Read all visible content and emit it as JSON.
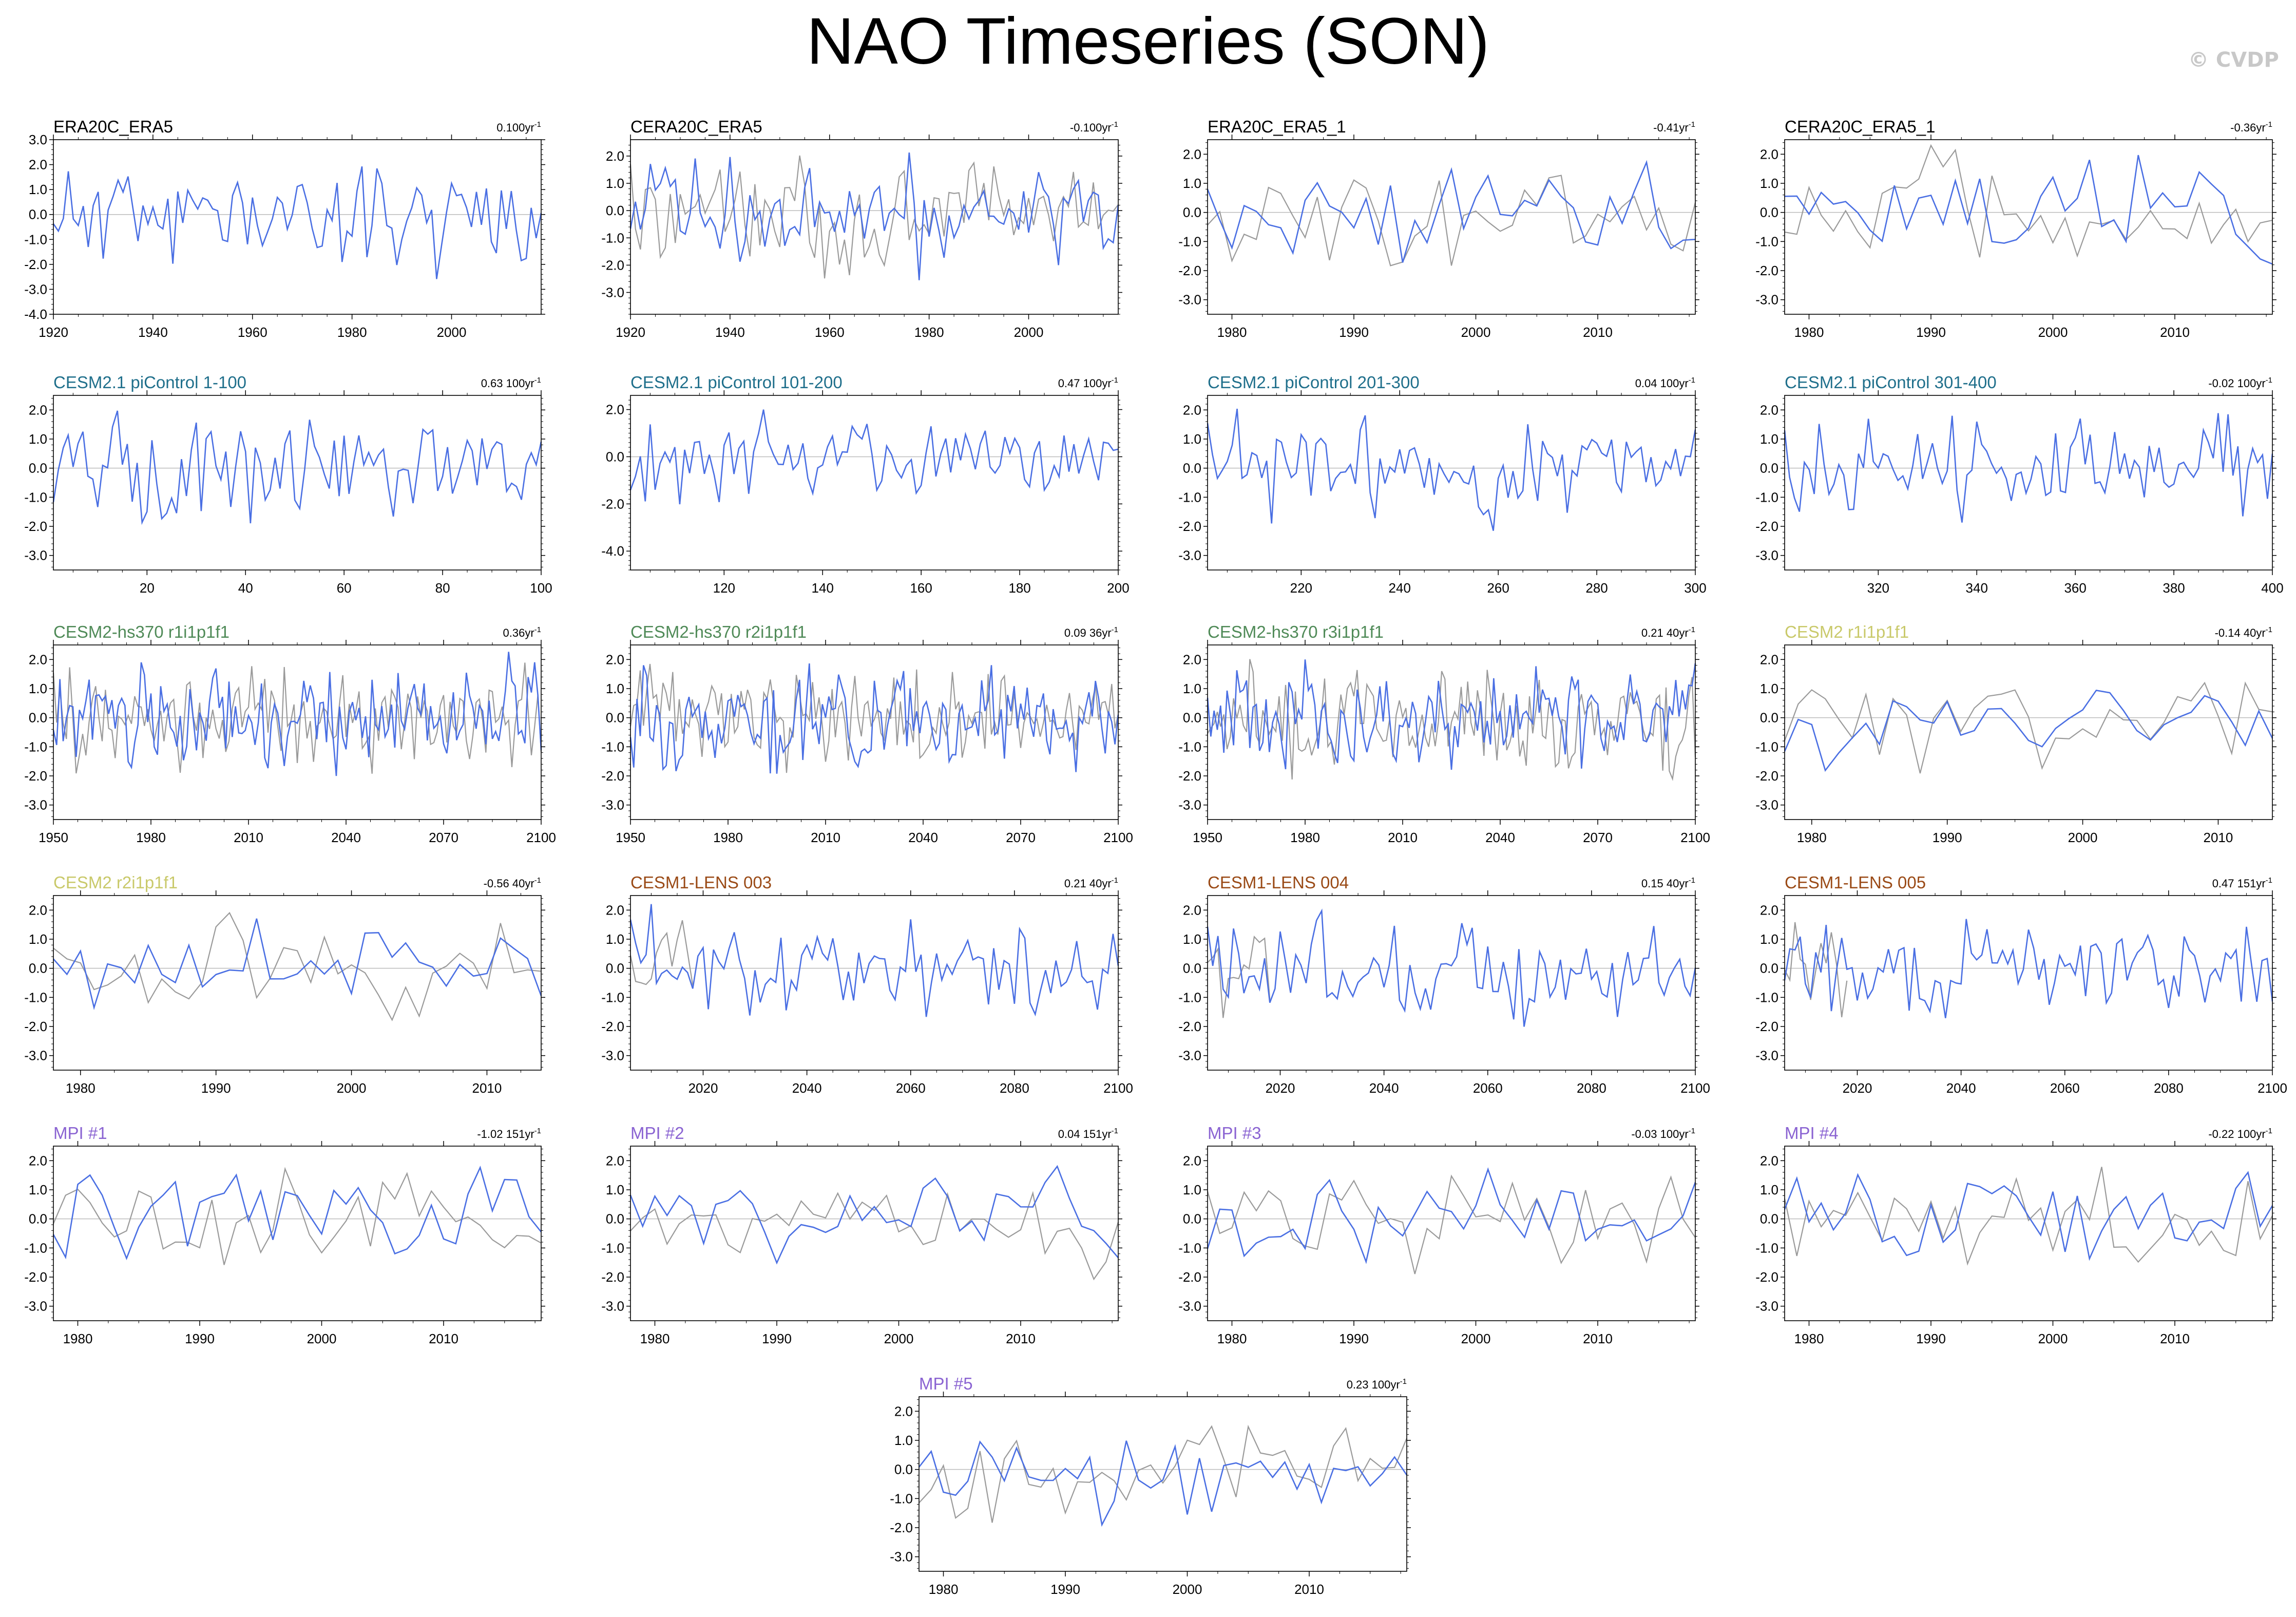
{
  "title": "NAO Timeseries (SON)",
  "credit": "© CVDP",
  "colors": {
    "model_line": "#4a6fe3",
    "obs_line": "#9a9a9a",
    "zero_line": "#bbbbbb",
    "axis": "#000000"
  },
  "chart_data": [
    {
      "id": "p1",
      "type": "line",
      "title": "ERA20C_ERA5",
      "title_color": "#000000",
      "trend": "0.100yr",
      "xlim": [
        1920,
        2018
      ],
      "ylim": [
        -4,
        3
      ],
      "yticks": [
        -4,
        -3,
        -2,
        -1,
        0,
        1,
        2,
        3
      ],
      "xticks": [
        1920,
        1940,
        1960,
        1980,
        2000
      ],
      "ytick_labels": [
        "-4.0",
        "-3.0",
        "-2.0",
        "-1.0",
        "0.0",
        "1.0",
        "2.0",
        "3.0"
      ],
      "grey": false,
      "seed": 11,
      "amp": 1.2
    },
    {
      "id": "p2",
      "type": "line",
      "title": "CERA20C_ERA5",
      "title_color": "#000000",
      "trend": "-0.100yr",
      "xlim": [
        1920,
        2018
      ],
      "ylim": [
        -3.8,
        2.6
      ],
      "yticks": [
        -3,
        -2,
        -1,
        0,
        1,
        2
      ],
      "xticks": [
        1920,
        1940,
        1960,
        1980,
        2000
      ],
      "ytick_labels": [
        "-3.0",
        "-2.0",
        "-1.0",
        "0.0",
        "1.0",
        "2.0"
      ],
      "grey": true,
      "seed": 12,
      "amp": 1.2
    },
    {
      "id": "p3",
      "type": "line",
      "title": "ERA20C_ERA5_1",
      "title_color": "#000000",
      "trend": "-0.41yr",
      "xlim": [
        1978,
        2018
      ],
      "ylim": [
        -3.5,
        2.5
      ],
      "yticks": [
        -3,
        -2,
        -1,
        0,
        1,
        2
      ],
      "xticks": [
        1980,
        1990,
        2000,
        2010
      ],
      "ytick_labels": [
        "-3.0",
        "-2.0",
        "-1.0",
        "0.0",
        "1.0",
        "2.0"
      ],
      "grey": true,
      "seed": 13,
      "amp": 1.0
    },
    {
      "id": "p4",
      "type": "line",
      "title": "CERA20C_ERA5_1",
      "title_color": "#000000",
      "trend": "-0.36yr",
      "xlim": [
        1978,
        2018
      ],
      "ylim": [
        -3.5,
        2.5
      ],
      "yticks": [
        -3,
        -2,
        -1,
        0,
        1,
        2
      ],
      "xticks": [
        1980,
        1990,
        2000,
        2010
      ],
      "ytick_labels": [
        "-3.0",
        "-2.0",
        "-1.0",
        "0.0",
        "1.0",
        "2.0"
      ],
      "grey": true,
      "seed": 14,
      "amp": 1.0
    },
    {
      "id": "p5",
      "type": "line",
      "title": "CESM2.1 piControl 1-100",
      "title_color": "#1f6f8b",
      "trend": "0.63 100yr",
      "xlim": [
        1,
        100
      ],
      "ylim": [
        -3.5,
        2.5
      ],
      "yticks": [
        -3,
        -2,
        -1,
        0,
        1,
        2
      ],
      "xticks": [
        20,
        40,
        60,
        80,
        100
      ],
      "ytick_labels": [
        "-3.0",
        "-2.0",
        "-1.0",
        "0.0",
        "1.0",
        "2.0"
      ],
      "grey": false,
      "seed": 21,
      "amp": 1.0
    },
    {
      "id": "p6",
      "type": "line",
      "title": "CESM2.1 piControl 101-200",
      "title_color": "#1f6f8b",
      "trend": "0.47 100yr",
      "xlim": [
        101,
        200
      ],
      "ylim": [
        -4.8,
        2.6
      ],
      "yticks": [
        -4,
        -2,
        0,
        2
      ],
      "xticks": [
        120,
        140,
        160,
        180,
        200
      ],
      "ytick_labels": [
        "-4.0",
        "-2.0",
        "0.0",
        "2.0"
      ],
      "grey": false,
      "seed": 22,
      "amp": 1.0
    },
    {
      "id": "p7",
      "type": "line",
      "title": "CESM2.1 piControl 201-300",
      "title_color": "#1f6f8b",
      "trend": "0.04 100yr",
      "xlim": [
        201,
        300
      ],
      "ylim": [
        -3.5,
        2.5
      ],
      "yticks": [
        -3,
        -2,
        -1,
        0,
        1,
        2
      ],
      "xticks": [
        220,
        240,
        260,
        280,
        300
      ],
      "ytick_labels": [
        "-3.0",
        "-2.0",
        "-1.0",
        "0.0",
        "1.0",
        "2.0"
      ],
      "grey": false,
      "seed": 23,
      "amp": 1.0
    },
    {
      "id": "p8",
      "type": "line",
      "title": "CESM2.1 piControl 301-400",
      "title_color": "#1f6f8b",
      "trend": "-0.02 100yr",
      "xlim": [
        301,
        400
      ],
      "ylim": [
        -3.5,
        2.5
      ],
      "yticks": [
        -3,
        -2,
        -1,
        0,
        1,
        2
      ],
      "xticks": [
        320,
        340,
        360,
        380,
        400
      ],
      "ytick_labels": [
        "-3.0",
        "-2.0",
        "-1.0",
        "0.0",
        "1.0",
        "2.0"
      ],
      "grey": false,
      "seed": 24,
      "amp": 1.0
    },
    {
      "id": "p9",
      "type": "line",
      "title": "CESM2-hs370 r1i1p1f1",
      "title_color": "#4f8a57",
      "trend": "0.36yr",
      "xlim": [
        1950,
        2100
      ],
      "ylim": [
        -3.5,
        2.5
      ],
      "yticks": [
        -3,
        -2,
        -1,
        0,
        1,
        2
      ],
      "xticks": [
        1950,
        1980,
        2010,
        2040,
        2070,
        2100
      ],
      "ytick_labels": [
        "-3.0",
        "-2.0",
        "-1.0",
        "0.0",
        "1.0",
        "2.0"
      ],
      "grey": true,
      "seed": 31,
      "amp": 1.0
    },
    {
      "id": "p10",
      "type": "line",
      "title": "CESM2-hs370 r2i1p1f1",
      "title_color": "#4f8a57",
      "trend": "0.09 36yr",
      "xlim": [
        1950,
        2100
      ],
      "ylim": [
        -3.5,
        2.5
      ],
      "yticks": [
        -3,
        -2,
        -1,
        0,
        1,
        2
      ],
      "xticks": [
        1950,
        1980,
        2010,
        2040,
        2070,
        2100
      ],
      "ytick_labels": [
        "-3.0",
        "-2.0",
        "-1.0",
        "0.0",
        "1.0",
        "2.0"
      ],
      "grey": true,
      "seed": 32,
      "amp": 1.0
    },
    {
      "id": "p11",
      "type": "line",
      "title": "CESM2-hs370 r3i1p1f1",
      "title_color": "#4f8a57",
      "trend": "0.21 40yr",
      "xlim": [
        1950,
        2100
      ],
      "ylim": [
        -3.5,
        2.5
      ],
      "yticks": [
        -3,
        -2,
        -1,
        0,
        1,
        2
      ],
      "xticks": [
        1950,
        1980,
        2010,
        2040,
        2070,
        2100
      ],
      "ytick_labels": [
        "-3.0",
        "-2.0",
        "-1.0",
        "0.0",
        "1.0",
        "2.0"
      ],
      "grey": true,
      "seed": 33,
      "amp": 1.0
    },
    {
      "id": "p12",
      "type": "line",
      "title": "CESM2 r1i1p1f1",
      "title_color": "#c9c96a",
      "trend": "-0.14 40yr",
      "xlim": [
        1978,
        2014
      ],
      "ylim": [
        -3.5,
        2.5
      ],
      "yticks": [
        -3,
        -2,
        -1,
        0,
        1,
        2
      ],
      "xticks": [
        1980,
        1990,
        2000,
        2010
      ],
      "ytick_labels": [
        "-3.0",
        "-2.0",
        "-1.0",
        "0.0",
        "1.0",
        "2.0"
      ],
      "grey": true,
      "seed": 34,
      "amp": 1.0
    },
    {
      "id": "p13",
      "type": "line",
      "title": "CESM2 r2i1p1f1",
      "title_color": "#c9c96a",
      "trend": "-0.56 40yr",
      "xlim": [
        1978,
        2014
      ],
      "ylim": [
        -3.5,
        2.5
      ],
      "yticks": [
        -3,
        -2,
        -1,
        0,
        1,
        2
      ],
      "xticks": [
        1980,
        1990,
        2000,
        2010
      ],
      "ytick_labels": [
        "-3.0",
        "-2.0",
        "-1.0",
        "0.0",
        "1.0",
        "2.0"
      ],
      "grey": true,
      "seed": 41,
      "amp": 1.0
    },
    {
      "id": "p14",
      "type": "line",
      "title": "CESM1-LENS 003",
      "title_color": "#9a4a16",
      "trend": "0.21 40yr",
      "xlim": [
        2006,
        2100
      ],
      "ylim": [
        -3.5,
        2.5
      ],
      "yticks": [
        -3,
        -2,
        -1,
        0,
        1,
        2
      ],
      "xticks": [
        2020,
        2040,
        2060,
        2080,
        2100
      ],
      "ytick_labels": [
        "-3.0",
        "-2.0",
        "-1.0",
        "0.0",
        "1.0",
        "2.0"
      ],
      "grey": true,
      "greyEnd": 2018,
      "seed": 42,
      "amp": 1.0
    },
    {
      "id": "p15",
      "type": "line",
      "title": "CESM1-LENS 004",
      "title_color": "#9a4a16",
      "trend": "0.15 40yr",
      "xlim": [
        2006,
        2100
      ],
      "ylim": [
        -3.5,
        2.5
      ],
      "yticks": [
        -3,
        -2,
        -1,
        0,
        1,
        2
      ],
      "xticks": [
        2020,
        2040,
        2060,
        2080,
        2100
      ],
      "ytick_labels": [
        "-3.0",
        "-2.0",
        "-1.0",
        "0.0",
        "1.0",
        "2.0"
      ],
      "grey": true,
      "greyEnd": 2018,
      "seed": 43,
      "amp": 1.0
    },
    {
      "id": "p16",
      "type": "line",
      "title": "CESM1-LENS 005",
      "title_color": "#9a4a16",
      "trend": "0.47 151yr",
      "xlim": [
        2006,
        2100
      ],
      "ylim": [
        -3.5,
        2.5
      ],
      "yticks": [
        -3,
        -2,
        -1,
        0,
        1,
        2
      ],
      "xticks": [
        2020,
        2040,
        2060,
        2080,
        2100
      ],
      "ytick_labels": [
        "-3.0",
        "-2.0",
        "-1.0",
        "0.0",
        "1.0",
        "2.0"
      ],
      "grey": true,
      "greyEnd": 2018,
      "seed": 44,
      "amp": 1.0
    },
    {
      "id": "p17",
      "type": "line",
      "title": "MPI #1",
      "title_color": "#8a63d2",
      "trend": "-1.02 151yr",
      "xlim": [
        1978,
        2018
      ],
      "ylim": [
        -3.5,
        2.5
      ],
      "yticks": [
        -3,
        -2,
        -1,
        0,
        1,
        2
      ],
      "xticks": [
        1980,
        1990,
        2000,
        2010
      ],
      "ytick_labels": [
        "-3.0",
        "-2.0",
        "-1.0",
        "0.0",
        "1.0",
        "2.0"
      ],
      "grey": true,
      "seed": 51,
      "amp": 1.0
    },
    {
      "id": "p18",
      "type": "line",
      "title": "MPI #2",
      "title_color": "#8a63d2",
      "trend": "0.04 151yr",
      "xlim": [
        1978,
        2018
      ],
      "ylim": [
        -3.5,
        2.5
      ],
      "yticks": [
        -3,
        -2,
        -1,
        0,
        1,
        2
      ],
      "xticks": [
        1980,
        1990,
        2000,
        2010
      ],
      "ytick_labels": [
        "-3.0",
        "-2.0",
        "-1.0",
        "0.0",
        "1.0",
        "2.0"
      ],
      "grey": true,
      "seed": 52,
      "amp": 1.0
    },
    {
      "id": "p19",
      "type": "line",
      "title": "MPI #3",
      "title_color": "#8a63d2",
      "trend": "-0.03 100yr",
      "xlim": [
        1978,
        2018
      ],
      "ylim": [
        -3.5,
        2.5
      ],
      "yticks": [
        -3,
        -2,
        -1,
        0,
        1,
        2
      ],
      "xticks": [
        1980,
        1990,
        2000,
        2010
      ],
      "ytick_labels": [
        "-3.0",
        "-2.0",
        "-1.0",
        "0.0",
        "1.0",
        "2.0"
      ],
      "grey": true,
      "seed": 53,
      "amp": 1.0
    },
    {
      "id": "p20",
      "type": "line",
      "title": "MPI #4",
      "title_color": "#8a63d2",
      "trend": "-0.22 100yr",
      "xlim": [
        1978,
        2018
      ],
      "ylim": [
        -3.5,
        2.5
      ],
      "yticks": [
        -3,
        -2,
        -1,
        0,
        1,
        2
      ],
      "xticks": [
        1980,
        1990,
        2000,
        2010
      ],
      "ytick_labels": [
        "-3.0",
        "-2.0",
        "-1.0",
        "0.0",
        "1.0",
        "2.0"
      ],
      "grey": true,
      "seed": 54,
      "amp": 1.0
    },
    {
      "id": "p21",
      "type": "line",
      "title": "MPI #5",
      "title_color": "#8a63d2",
      "trend": "0.23 100yr",
      "xlim": [
        1978,
        2018
      ],
      "ylim": [
        -3.5,
        2.5
      ],
      "yticks": [
        -3,
        -2,
        -1,
        0,
        1,
        2
      ],
      "xticks": [
        1980,
        1990,
        2000,
        2010
      ],
      "ytick_labels": [
        "-3.0",
        "-2.0",
        "-1.0",
        "0.0",
        "1.0",
        "2.0"
      ],
      "grey": true,
      "seed": 55,
      "amp": 1.0
    }
  ]
}
